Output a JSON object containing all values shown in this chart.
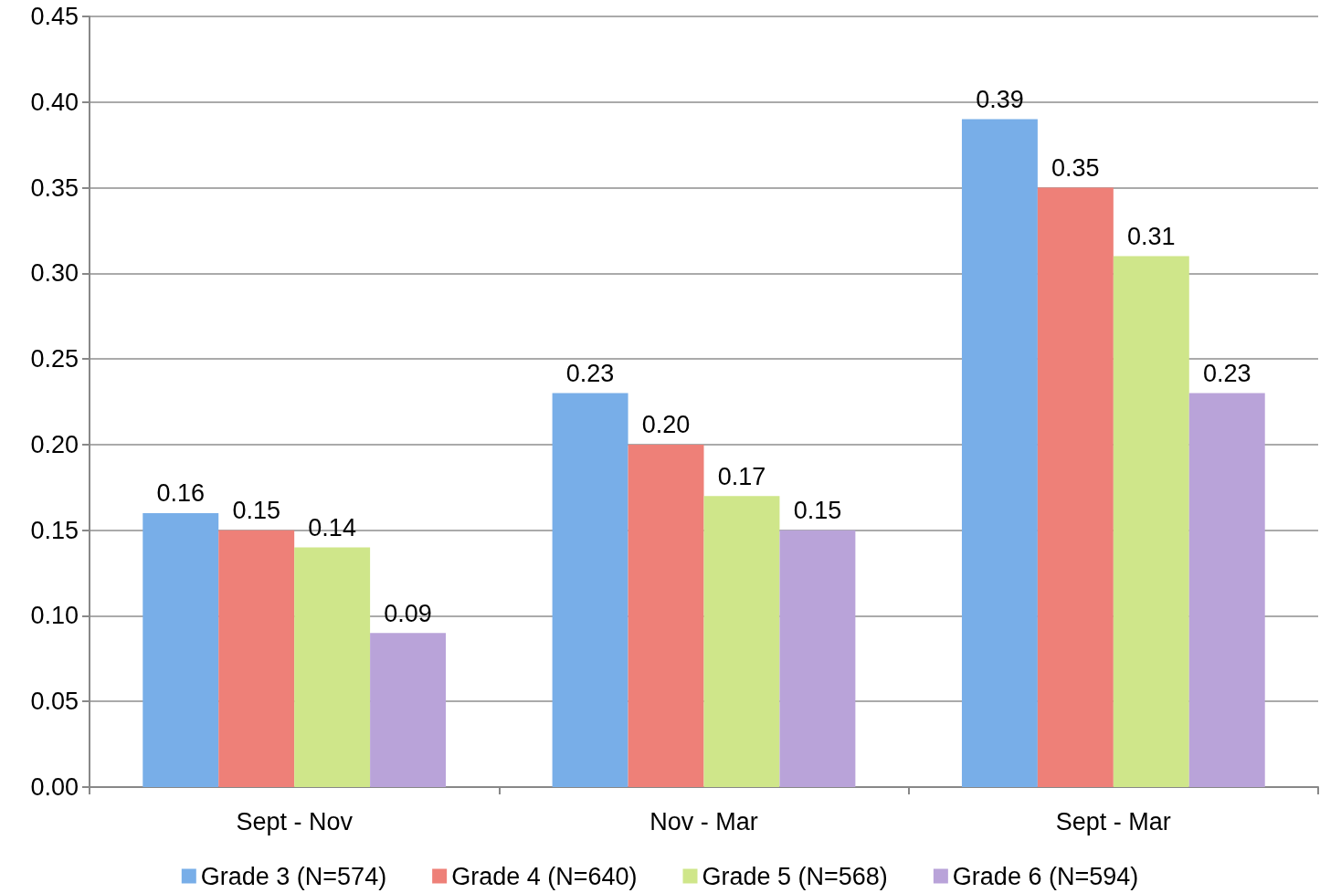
{
  "chart_data": {
    "type": "bar",
    "categories": [
      "Sept - Nov",
      "Nov - Mar",
      "Sept - Mar"
    ],
    "series": [
      {
        "name": "Grade 3 (N=574)",
        "color": "#78aee8",
        "values": [
          0.16,
          0.23,
          0.39
        ],
        "value_labels": [
          "0.16",
          "0.23",
          "0.39"
        ]
      },
      {
        "name": "Grade 4 (N=640)",
        "color": "#ee8078",
        "values": [
          0.15,
          0.2,
          0.35
        ],
        "value_labels": [
          "0.15",
          "0.20",
          "0.35"
        ]
      },
      {
        "name": "Grade 5 (N=568)",
        "color": "#cfe68a",
        "values": [
          0.14,
          0.17,
          0.31
        ],
        "value_labels": [
          "0.14",
          "0.17",
          "0.31"
        ]
      },
      {
        "name": "Grade 6 (N=594)",
        "color": "#b9a3d9",
        "values": [
          0.09,
          0.15,
          0.23
        ],
        "value_labels": [
          "0.09",
          "0.15",
          "0.23"
        ]
      }
    ],
    "ylim": [
      0,
      0.45
    ],
    "yticks": [
      {
        "value": 0,
        "label": "0.00"
      },
      {
        "value": 0.05,
        "label": "0.05"
      },
      {
        "value": 0.1,
        "label": "0.10"
      },
      {
        "value": 0.15,
        "label": "0.15"
      },
      {
        "value": 0.2,
        "label": "0.20"
      },
      {
        "value": 0.25,
        "label": "0.25"
      },
      {
        "value": 0.3,
        "label": "0.30"
      },
      {
        "value": 0.35,
        "label": "0.35"
      },
      {
        "value": 0.4,
        "label": "0.40"
      },
      {
        "value": 0.45,
        "label": "0.45"
      }
    ],
    "grid": "y",
    "legend": "bottom"
  }
}
